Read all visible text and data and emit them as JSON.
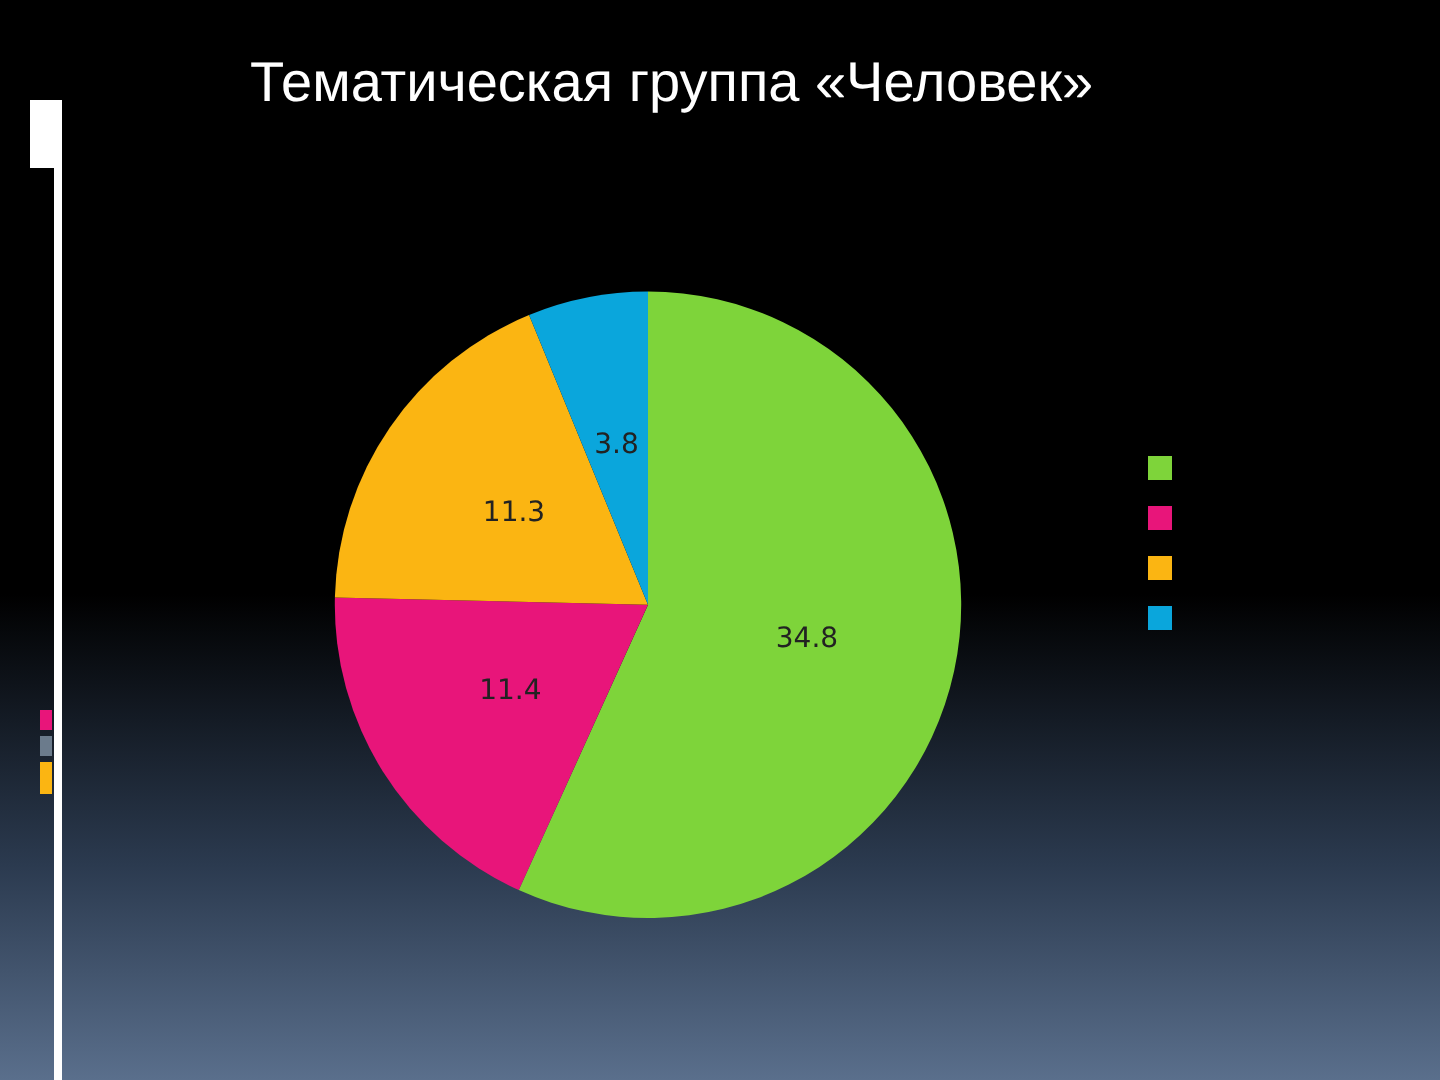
{
  "chart_data": {
    "type": "pie",
    "title": "Тематическая группа «Человек»",
    "categories": [
      null,
      null,
      null,
      null
    ],
    "values": [
      34.8,
      11.4,
      11.3,
      3.8
    ],
    "colors": [
      "#7ed43a",
      "#e8157a",
      "#fbb512",
      "#0aa6dc"
    ],
    "data_labels": true
  }
}
